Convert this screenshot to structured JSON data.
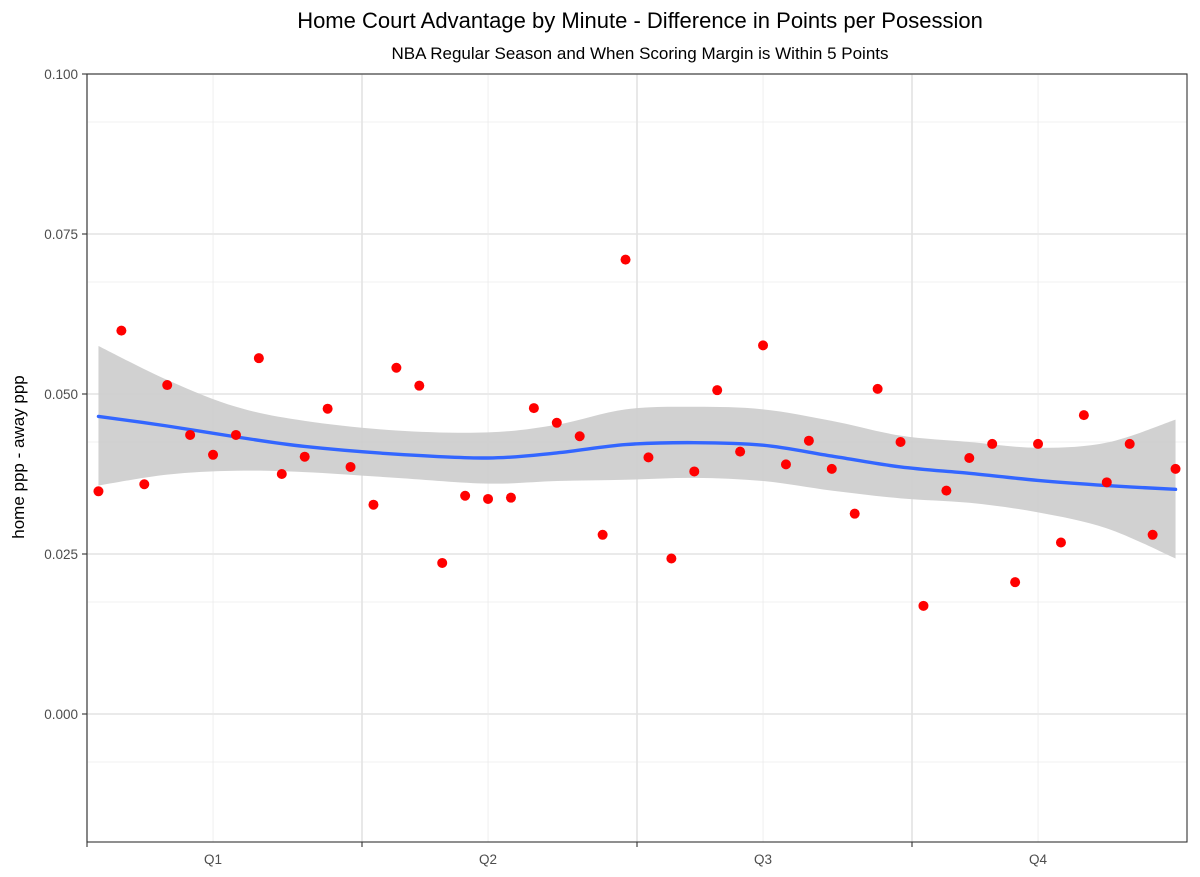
{
  "chart_data": {
    "type": "scatter",
    "title": "Home Court Advantage by Minute - Difference in Points per Posession",
    "subtitle": "NBA Regular Season and When Scoring Margin is Within 5 Points",
    "xlabel": "",
    "ylabel": "home ppp - away ppp",
    "xlim": [
      0.5,
      48.5
    ],
    "ylim": [
      -0.02,
      0.1
    ],
    "x_ticks": [
      {
        "x": 6,
        "label": "Q1"
      },
      {
        "x": 18,
        "label": "Q2"
      },
      {
        "x": 30,
        "label": "Q3"
      },
      {
        "x": 42,
        "label": "Q4"
      }
    ],
    "y_ticks": [
      0.0,
      0.025,
      0.05,
      0.075,
      0.1
    ],
    "y_tick_labels": [
      "0.000",
      "0.025",
      "0.050",
      "0.075",
      "0.100"
    ],
    "grid": true,
    "series": [
      {
        "kind": "points",
        "color": "#ff0000",
        "x": [
          1,
          2,
          3,
          4,
          5,
          6,
          7,
          8,
          9,
          10,
          11,
          12,
          13,
          14,
          15,
          16,
          17,
          18,
          19,
          20,
          21,
          22,
          23,
          24,
          25,
          26,
          27,
          28,
          29,
          30,
          31,
          32,
          33,
          34,
          35,
          36,
          37,
          38,
          39,
          40,
          41,
          42,
          43,
          44,
          45,
          46,
          47,
          48
        ],
        "y": [
          0.0348,
          0.0599,
          0.0359,
          0.0514,
          0.0436,
          0.0405,
          0.0436,
          0.0556,
          0.0375,
          0.0402,
          0.0477,
          0.0386,
          0.0327,
          0.0541,
          0.0513,
          0.0236,
          0.0341,
          0.0336,
          0.0338,
          0.0478,
          0.0455,
          0.0434,
          0.028,
          0.071,
          0.0401,
          0.0243,
          0.0379,
          0.0506,
          0.041,
          0.0576,
          0.039,
          0.0427,
          0.0383,
          0.0313,
          0.0508,
          0.0425,
          0.0169,
          0.0349,
          0.04,
          0.0422,
          0.0206,
          0.0422,
          0.0268,
          0.0467,
          0.0362,
          0.0422,
          0.028,
          0.0383
        ]
      },
      {
        "kind": "smooth",
        "name": "",
        "color": "#3366ff",
        "band_color": "#cccccc",
        "x": [
          1,
          4,
          7,
          10,
          14,
          18,
          21,
          24,
          27,
          30,
          33,
          36,
          39,
          42,
          45,
          48
        ],
        "y": [
          0.0465,
          0.045,
          0.0433,
          0.0418,
          0.0406,
          0.04,
          0.0408,
          0.0421,
          0.0424,
          0.042,
          0.0403,
          0.0386,
          0.0376,
          0.0365,
          0.0357,
          0.0351
        ],
        "lower": [
          0.0357,
          0.0374,
          0.038,
          0.0378,
          0.0369,
          0.036,
          0.0364,
          0.0366,
          0.0369,
          0.0364,
          0.0349,
          0.0337,
          0.033,
          0.0315,
          0.029,
          0.0243
        ],
        "upper": [
          0.0575,
          0.0522,
          0.048,
          0.0458,
          0.0443,
          0.044,
          0.0452,
          0.0476,
          0.048,
          0.0476,
          0.0458,
          0.0435,
          0.0425,
          0.0416,
          0.0424,
          0.046
        ]
      }
    ]
  }
}
